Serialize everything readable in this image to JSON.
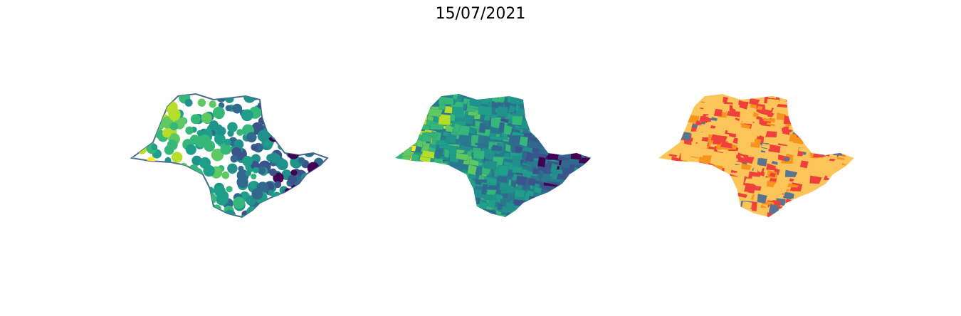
{
  "title": "15/07/2021"
}
